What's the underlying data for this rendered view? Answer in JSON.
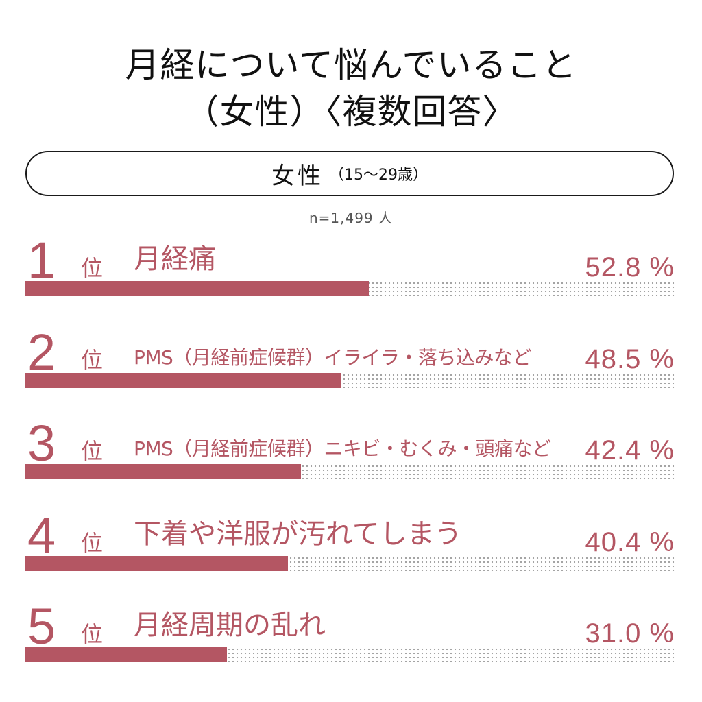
{
  "title": {
    "line1": "月経について悩んでいること",
    "line2": "（女性）〈複数回答〉"
  },
  "group": {
    "main": "女性",
    "sub": "（15〜29歳）"
  },
  "sample_size": "n=1,499 人",
  "colors": {
    "accent": "#b45663",
    "text": "#111111",
    "dots": "#9a9a9a"
  },
  "chart_data": {
    "type": "bar",
    "orientation": "horizontal",
    "title": "月経について悩んでいること（女性）〈複数回答〉",
    "xlim": [
      0,
      100
    ],
    "unit": "%",
    "categories": [
      "月経痛",
      "PMS（月経前症候群）イライラ・落ち込みなど",
      "PMS（月経前症候群）ニキビ・むくみ・頭痛など",
      "下着や洋服が汚れてしまう",
      "月経周期の乱れ"
    ],
    "values": [
      52.8,
      48.5,
      42.4,
      40.4,
      31.0
    ],
    "rows": [
      {
        "rank": "1",
        "suffix": "位",
        "label": "月経痛",
        "pct": "52.8 %",
        "value": 52.8
      },
      {
        "rank": "2",
        "suffix": "位",
        "label": "PMS（月経前症候群）イライラ・落ち込みなど",
        "pct": "48.5 %",
        "value": 48.5
      },
      {
        "rank": "3",
        "suffix": "位",
        "label": "PMS（月経前症候群）ニキビ・むくみ・頭痛など",
        "pct": "42.4 %",
        "value": 42.4
      },
      {
        "rank": "4",
        "suffix": "位",
        "label": "下着や洋服が汚れてしまう",
        "pct": "40.4 %",
        "value": 40.4
      },
      {
        "rank": "5",
        "suffix": "位",
        "label": "月経周期の乱れ",
        "pct": "31.0 %",
        "value": 31.0
      }
    ]
  }
}
